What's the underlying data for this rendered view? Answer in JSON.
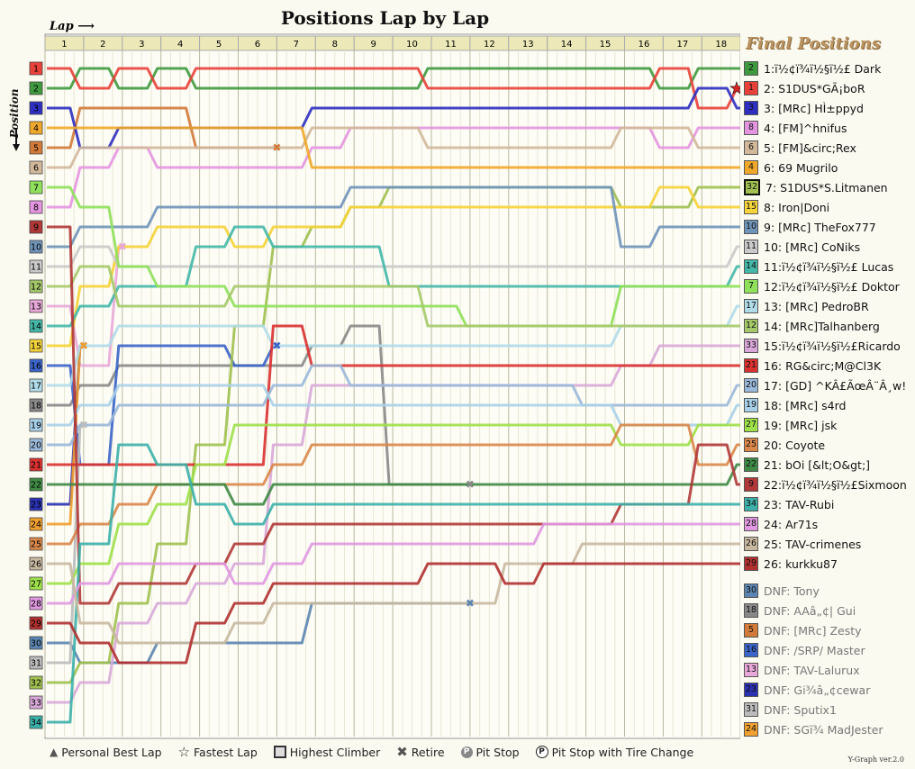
{
  "title": "Positions Lap by Lap",
  "lap_label": "Lap",
  "position_label": "Position",
  "final_positions_title": "Final Positions",
  "version": "Y-Graph ver.2.0",
  "legend": [
    {
      "icon": "triangle-icon",
      "label": "Personal Best Lap"
    },
    {
      "icon": "star-icon",
      "label": "Fastest Lap"
    },
    {
      "icon": "square-icon",
      "label": "Highest Climber"
    },
    {
      "icon": "cross-icon",
      "label": "Retire"
    },
    {
      "icon": "pit-icon",
      "label": "Pit Stop"
    },
    {
      "icon": "pit-tire-icon",
      "label": "Pit Stop with Tire Change"
    }
  ],
  "chart_data": {
    "type": "line",
    "laps": [
      "1",
      "2",
      "3",
      "4",
      "5",
      "6",
      "7",
      "8",
      "9",
      "10",
      "11",
      "12",
      "13",
      "14",
      "15",
      "16",
      "17",
      "18"
    ],
    "start_positions": [
      "1",
      "2",
      "3",
      "4",
      "5",
      "6",
      "7",
      "8",
      "9",
      "10",
      "11",
      "12",
      "13",
      "14",
      "15",
      "16",
      "17",
      "18",
      "19",
      "20",
      "21",
      "22",
      "23",
      "24",
      "25",
      "26",
      "27",
      "28",
      "29",
      "30",
      "31",
      "32",
      "33",
      "34"
    ],
    "finishers": [
      {
        "pos": "1",
        "grid": "2",
        "name": "1:ï½¢ï¾ï½§ï½£ Dark",
        "color": "#3f9a3f",
        "path": [
          2,
          1,
          2,
          1,
          2,
          2,
          2,
          2,
          2,
          2,
          1,
          1,
          1,
          1,
          1,
          1,
          2,
          1,
          1
        ]
      },
      {
        "pos": "2",
        "grid": "1",
        "name": "2: S1DUS*GÃ¡boR",
        "color": "#e8413a",
        "path": [
          1,
          2,
          1,
          2,
          1,
          1,
          1,
          1,
          1,
          1,
          2,
          2,
          2,
          2,
          2,
          2,
          1,
          3,
          2
        ]
      },
      {
        "pos": "3",
        "grid": "3",
        "name": "3: [MRc] HÌ±ppyd",
        "color": "#2e2fbf",
        "path": [
          3,
          5,
          4,
          4,
          4,
          4,
          4,
          3,
          3,
          3,
          3,
          3,
          3,
          3,
          3,
          3,
          3,
          2,
          3
        ]
      },
      {
        "pos": "4",
        "grid": "8",
        "name": "4: [FM]^hnifus",
        "color": "#e495e0",
        "path": [
          8,
          6,
          5,
          6,
          6,
          6,
          6,
          5,
          4,
          4,
          4,
          4,
          4,
          4,
          4,
          4,
          5,
          4,
          4
        ]
      },
      {
        "pos": "5",
        "grid": "6",
        "name": "5: [FM]&circ;Rex",
        "color": "#d2b89b",
        "path": [
          6,
          5,
          5,
          5,
          5,
          5,
          5,
          4,
          4,
          4,
          5,
          5,
          5,
          5,
          5,
          4,
          4,
          5,
          5
        ]
      },
      {
        "pos": "6",
        "grid": "4",
        "name": "6: 69 Mugrilo",
        "color": "#f0a82a",
        "path": [
          4,
          4,
          4,
          4,
          4,
          4,
          4,
          6,
          6,
          6,
          6,
          6,
          6,
          6,
          6,
          6,
          6,
          6,
          6
        ]
      },
      {
        "pos": "7",
        "grid": "32",
        "name": "7: S1DUS*S.Litmanen",
        "color": "#a0c050",
        "path": [
          32,
          31,
          28,
          25,
          20,
          14,
          10,
          9,
          8,
          7,
          7,
          7,
          7,
          7,
          7,
          8,
          8,
          7,
          7
        ]
      },
      {
        "pos": "8",
        "grid": "15",
        "name": "8: Iron|Doni",
        "color": "#f5d33a",
        "path": [
          15,
          12,
          10,
          9,
          9,
          10,
          9,
          9,
          8,
          8,
          8,
          8,
          8,
          8,
          8,
          8,
          7,
          8,
          8
        ]
      },
      {
        "pos": "9",
        "grid": "10",
        "name": "9: [MRc] TheFox777",
        "color": "#6f94b8",
        "path": [
          10,
          9,
          9,
          8,
          8,
          8,
          8,
          8,
          7,
          7,
          7,
          7,
          7,
          7,
          7,
          10,
          9,
          9,
          9
        ]
      },
      {
        "pos": "10",
        "grid": "11",
        "name": "10: [MRc] CoNiks",
        "color": "#c9c9c9",
        "path": [
          11,
          10,
          11,
          11,
          11,
          11,
          11,
          11,
          11,
          11,
          11,
          11,
          11,
          11,
          11,
          11,
          11,
          11,
          10
        ]
      },
      {
        "pos": "11",
        "grid": "14",
        "name": "11:ï½¢ï¾ï½§ï½£ Lucas",
        "color": "#44b8a8",
        "path": [
          14,
          13,
          12,
          12,
          10,
          9,
          10,
          10,
          10,
          12,
          12,
          12,
          12,
          12,
          12,
          12,
          12,
          12,
          11
        ]
      },
      {
        "pos": "12",
        "grid": "7",
        "name": "12:ï½¢ï¾ï½§ï½£ Doktor",
        "color": "#8fe05a",
        "path": [
          7,
          8,
          11,
          12,
          12,
          13,
          13,
          13,
          13,
          13,
          13,
          14,
          14,
          14,
          14,
          12,
          12,
          12,
          12
        ]
      },
      {
        "pos": "13",
        "grid": "17",
        "name": "13: [MRc] PedroBR",
        "color": "#b0dce8",
        "path": [
          17,
          15,
          14,
          14,
          14,
          14,
          15,
          15,
          15,
          15,
          15,
          15,
          15,
          15,
          15,
          14,
          14,
          14,
          13
        ]
      },
      {
        "pos": "14",
        "grid": "12",
        "name": "14: [MRc]Talhanberg",
        "color": "#a5c96a",
        "path": [
          12,
          11,
          13,
          13,
          13,
          12,
          12,
          12,
          12,
          12,
          14,
          14,
          14,
          14,
          14,
          14,
          14,
          14,
          14
        ]
      },
      {
        "pos": "15",
        "grid": "33",
        "name": "15:ï½¢ï¾ï½§ï½£Ricardo",
        "color": "#d8a8d8",
        "path": [
          33,
          32,
          29,
          28,
          27,
          26,
          20,
          17,
          17,
          17,
          17,
          17,
          17,
          17,
          17,
          16,
          15,
          15,
          15
        ]
      },
      {
        "pos": "16",
        "grid": "21",
        "name": "16: RG&circ;M@Cl3K",
        "color": "#d93030",
        "path": [
          21,
          21,
          21,
          21,
          21,
          21,
          14,
          16,
          16,
          16,
          16,
          16,
          16,
          16,
          16,
          16,
          16,
          16,
          16
        ]
      },
      {
        "pos": "17",
        "grid": "20",
        "name": "17: [GD] ^KÂ£ÃœÂ¨Â¸w!",
        "color": "#9ab8d8",
        "path": [
          20,
          19,
          18,
          18,
          18,
          18,
          17,
          16,
          17,
          17,
          17,
          17,
          17,
          17,
          18,
          18,
          18,
          18,
          17
        ]
      },
      {
        "pos": "18",
        "grid": "19",
        "name": "18: [MRc] s4rd",
        "color": "#a8d0e8",
        "path": [
          19,
          18,
          17,
          17,
          17,
          17,
          18,
          18,
          18,
          18,
          18,
          18,
          18,
          18,
          18,
          19,
          19,
          19,
          18
        ]
      },
      {
        "pos": "19",
        "grid": "27",
        "name": "19: [MRc] jsk",
        "color": "#9ee04a",
        "path": [
          27,
          26,
          24,
          23,
          21,
          19,
          19,
          19,
          19,
          19,
          19,
          19,
          19,
          19,
          19,
          20,
          20,
          19,
          19
        ]
      },
      {
        "pos": "20",
        "grid": "25",
        "name": "20: Coyote",
        "color": "#d9874a",
        "path": [
          25,
          24,
          23,
          22,
          22,
          22,
          21,
          20,
          20,
          20,
          20,
          20,
          20,
          20,
          20,
          19,
          19,
          21,
          20
        ]
      },
      {
        "pos": "21",
        "grid": "22",
        "name": "21: bOi [&lt;O&gt;]",
        "color": "#3e8a45",
        "path": [
          22,
          22,
          22,
          22,
          22,
          23,
          22,
          22,
          22,
          22,
          22,
          22,
          22,
          22,
          22,
          22,
          22,
          22,
          21
        ]
      },
      {
        "pos": "22",
        "grid": "9",
        "name": "22:ï½¢ï¾ï½§ï½£Sixmoon",
        "color": "#b03838",
        "path": [
          9,
          28,
          27,
          27,
          26,
          25,
          24,
          24,
          24,
          24,
          24,
          24,
          24,
          24,
          24,
          23,
          23,
          20,
          22
        ]
      },
      {
        "pos": "23",
        "grid": "34",
        "name": "23: TAV-Rubi",
        "color": "#3cb0a8",
        "path": [
          34,
          25,
          20,
          21,
          23,
          24,
          23,
          23,
          23,
          23,
          23,
          23,
          23,
          23,
          23,
          23,
          23,
          23,
          23
        ]
      },
      {
        "pos": "24",
        "grid": "28",
        "name": "24: Ar71s",
        "color": "#e098e0",
        "path": [
          28,
          27,
          26,
          26,
          26,
          27,
          26,
          25,
          25,
          25,
          25,
          25,
          25,
          24,
          24,
          24,
          24,
          24,
          24
        ]
      },
      {
        "pos": "25",
        "grid": "26",
        "name": "25: TAV-crimenes",
        "color": "#c8b8a0",
        "path": [
          26,
          29,
          30,
          30,
          30,
          29,
          28,
          28,
          28,
          28,
          28,
          28,
          26,
          26,
          25,
          25,
          25,
          25,
          25
        ]
      },
      {
        "pos": "26",
        "grid": "29",
        "name": "26: kurkku87",
        "color": "#b03030",
        "path": [
          29,
          30,
          31,
          31,
          29,
          28,
          27,
          27,
          27,
          27,
          26,
          26,
          27,
          26,
          26,
          26,
          26,
          26,
          26
        ]
      }
    ],
    "dnf": [
      {
        "grid": "30",
        "name": "DNF: Tony",
        "color": "#5b85b0",
        "path": [
          30,
          31,
          31,
          30,
          30,
          30,
          30,
          28,
          28,
          28,
          28,
          28
        ]
      },
      {
        "grid": "18",
        "name": "DNF: AAâ„¢| Gui",
        "color": "#888888",
        "path": [
          18,
          17,
          16,
          16,
          16,
          16,
          16,
          15,
          14,
          22,
          22,
          22
        ]
      },
      {
        "grid": "5",
        "name": "DNF: [MRc] Zesty",
        "color": "#d27a3a",
        "path": [
          5,
          3,
          3,
          3,
          5,
          5,
          5
        ]
      },
      {
        "grid": "16",
        "name": "DNF: /SRP/ Master",
        "color": "#3a64c8",
        "path": [
          16,
          21,
          15,
          15,
          15,
          16,
          15
        ]
      },
      {
        "grid": "13",
        "name": "DNF: TAV-Lalurux",
        "color": "#e8a8d8",
        "path": [
          13,
          16,
          10
        ]
      },
      {
        "grid": "23",
        "name": "DNF: Gi¾â„¢cewar",
        "color": "#2a30b0",
        "path": [
          23,
          15
        ]
      },
      {
        "grid": "31",
        "name": "DNF: Sputix1",
        "color": "#bbbbbb",
        "path": [
          31,
          19
        ]
      },
      {
        "grid": "24",
        "name": "DNF: SGï¾ MadJester",
        "color": "#f0a030",
        "path": [
          24,
          15
        ]
      }
    ]
  }
}
